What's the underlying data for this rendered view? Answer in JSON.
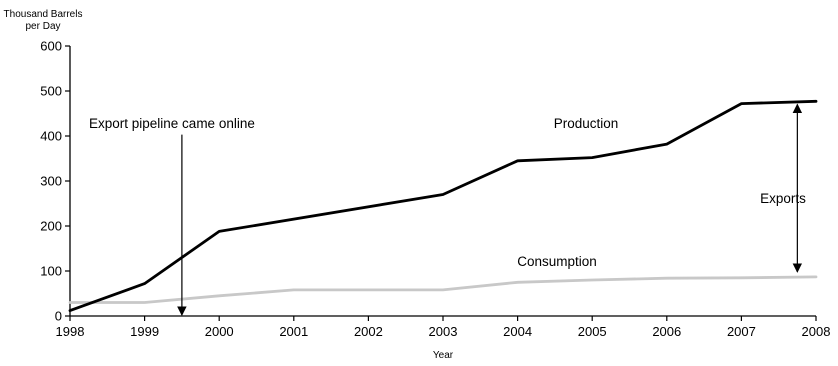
{
  "chart_data": {
    "type": "line",
    "ylabel_lines": [
      "Thousand Barrels",
      "per Day"
    ],
    "xlabel": "Year",
    "xlim": [
      1998,
      2008
    ],
    "ylim": [
      0,
      600
    ],
    "x_ticks": [
      1998,
      1999,
      2000,
      2001,
      2002,
      2003,
      2004,
      2005,
      2006,
      2007,
      2008
    ],
    "y_ticks": [
      0,
      100,
      200,
      300,
      400,
      500,
      600
    ],
    "grid": false,
    "series": [
      {
        "name": "Production",
        "color": "#000000",
        "x": [
          1998,
          1999,
          2000,
          2003,
          2004,
          2005,
          2006,
          2007,
          2008
        ],
        "y": [
          12,
          72,
          188,
          270,
          345,
          352,
          382,
          472,
          477
        ]
      },
      {
        "name": "Consumption",
        "color": "#c8c8c8",
        "x": [
          1998,
          1999,
          2000,
          2001,
          2002,
          2003,
          2004,
          2005,
          2006,
          2007,
          2008
        ],
        "y": [
          30,
          30,
          45,
          58,
          58,
          58,
          75,
          80,
          84,
          85,
          87
        ]
      }
    ],
    "annotations": [
      {
        "id": "pipeline",
        "text": "Export pipeline came online",
        "arrow_x": 1999.5,
        "arrow_from_y": 403,
        "arrow_to_y": 0
      },
      {
        "id": "exports",
        "text": "Exports",
        "arrow_x": 2007.75,
        "arrow_from_y": 470,
        "arrow_to_y": 98
      }
    ]
  }
}
